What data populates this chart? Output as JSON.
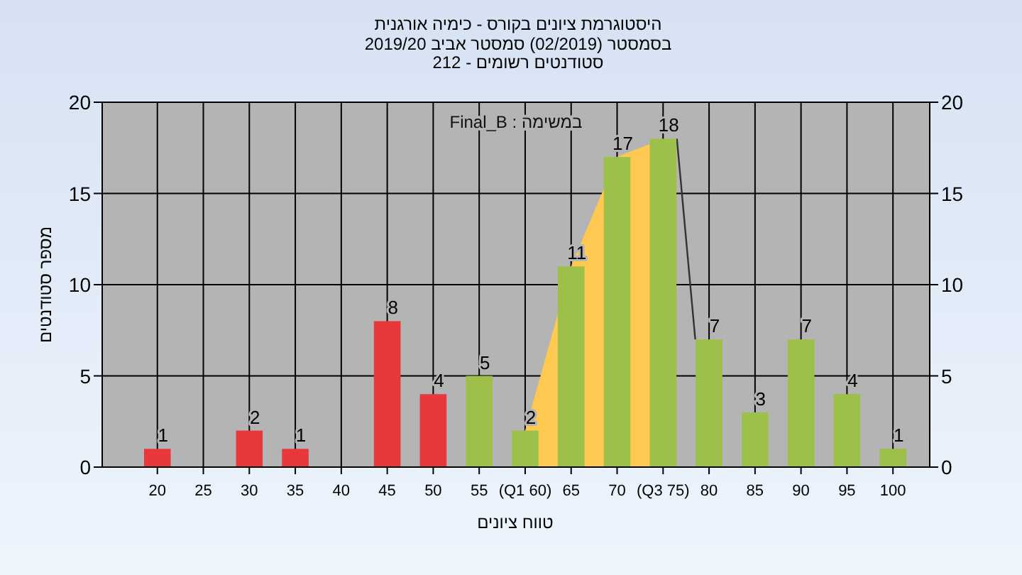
{
  "chart_data": {
    "type": "bar",
    "title": "היסטוגרמת ציונים בקורס - כימיה אורגנית",
    "subtitle": "בסמסטר  (02/2019)  סמסטר אביב 2019/20\nסטודנטים רשומים - 212",
    "xlabel": "טווח ציונים",
    "ylabel": "מספר סטודנטים",
    "annotations": [
      "במשימה : Final_B"
    ],
    "x": [
      20,
      25,
      30,
      35,
      40,
      45,
      50,
      55,
      60,
      65,
      70,
      75,
      80,
      85,
      90,
      95,
      100
    ],
    "series": [
      {
        "type": "area",
        "color": "#ffc851",
        "x": [
          60,
          65,
          70,
          75
        ],
        "values": [
          2,
          11,
          17,
          18
        ]
      },
      {
        "type": "line",
        "color": "#333333",
        "x": [
          76.5,
          78.5
        ],
        "values": [
          18,
          7
        ]
      },
      {
        "values": [
          1,
          0,
          2,
          1,
          0,
          8,
          4,
          5,
          2,
          11,
          17,
          18,
          7,
          3,
          7,
          4,
          1
        ],
        "colors": [
          "#e8383c",
          "#e8383c",
          "#e8383c",
          "#e8383c",
          "#e8383c",
          "#e8383c",
          "#e8383c",
          "#9cc04a",
          "#9cc04a",
          "#9cc04a",
          "#9cc04a",
          "#9cc04a",
          "#9cc04a",
          "#9cc04a",
          "#9cc04a",
          "#9cc04a",
          "#9cc04a"
        ],
        "value_labels": [
          "1",
          null,
          "2",
          "1",
          null,
          "8",
          "4",
          "5",
          "2",
          "11",
          "17",
          "18",
          "7",
          "3",
          "7",
          "4",
          "1"
        ]
      }
    ],
    "xlim": [
      14,
      104
    ],
    "xticks": [
      20,
      25,
      30,
      35,
      40,
      45,
      50,
      55,
      {
        "value": 60,
        "label": "(Q1 60)"
      },
      65,
      70,
      {
        "value": 75,
        "label": "(Q3 75)"
      },
      80,
      85,
      90,
      95,
      100
    ],
    "ylim": [
      0,
      20
    ],
    "yticks": [
      0,
      5,
      10,
      15,
      20
    ],
    "y2lim": [
      0,
      20
    ],
    "y2ticks": [
      0,
      5,
      10,
      15,
      20
    ],
    "grid": true
  }
}
